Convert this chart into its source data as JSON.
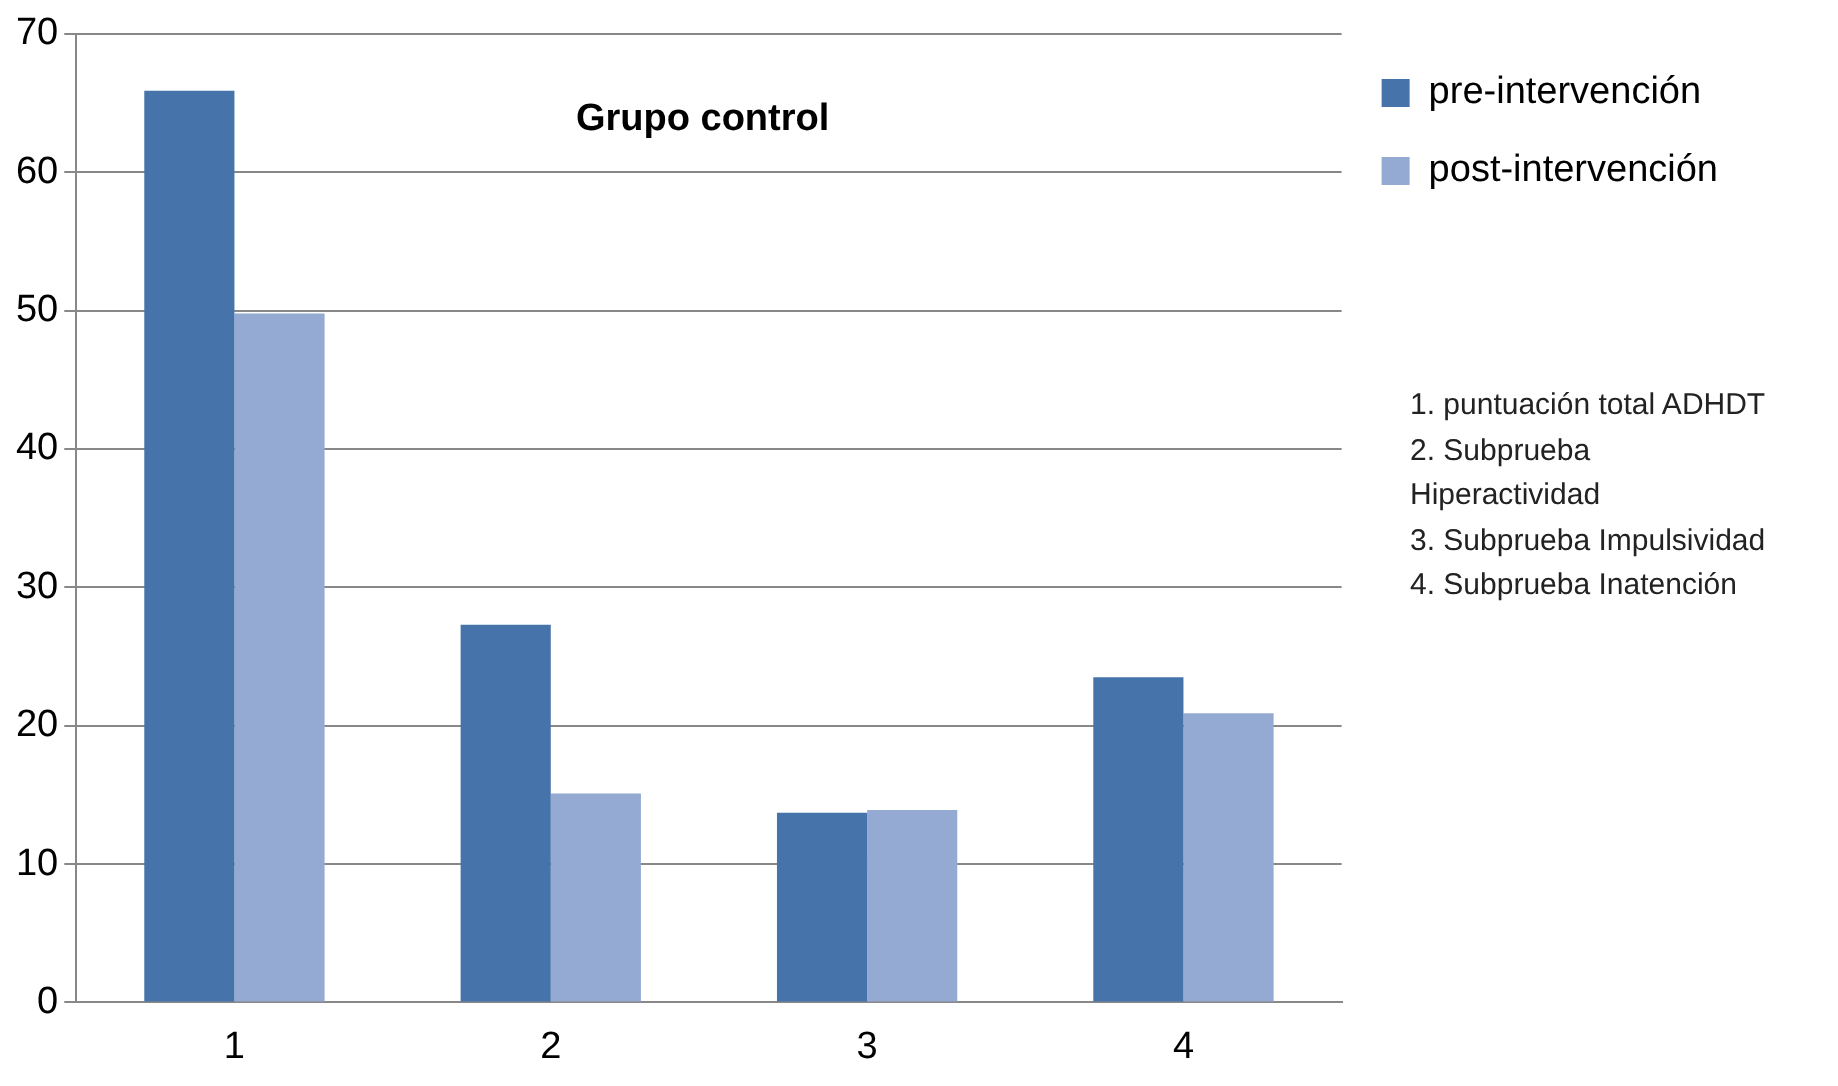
{
  "chart_data": {
    "type": "bar",
    "title": "Grupo control",
    "categories": [
      "1",
      "2",
      "3",
      "4"
    ],
    "series": [
      {
        "name": "pre-intervención",
        "color": "#4673aa",
        "values": [
          65.9,
          27.3,
          13.7,
          23.5
        ]
      },
      {
        "name": "post-intervención",
        "color": "#94aad3",
        "values": [
          49.8,
          15.1,
          13.9,
          20.9
        ]
      }
    ],
    "ylim": [
      0,
      70
    ],
    "yticks": [
      0,
      10,
      20,
      30,
      40,
      50,
      60,
      70
    ],
    "grid": "y",
    "legend": "right",
    "annotations": [
      "1. puntuación total ADHDT",
      "2. Subprueba Hiperactividad",
      "3. Subprueba Impulsividad",
      "4. Subprueba Inatención"
    ]
  }
}
